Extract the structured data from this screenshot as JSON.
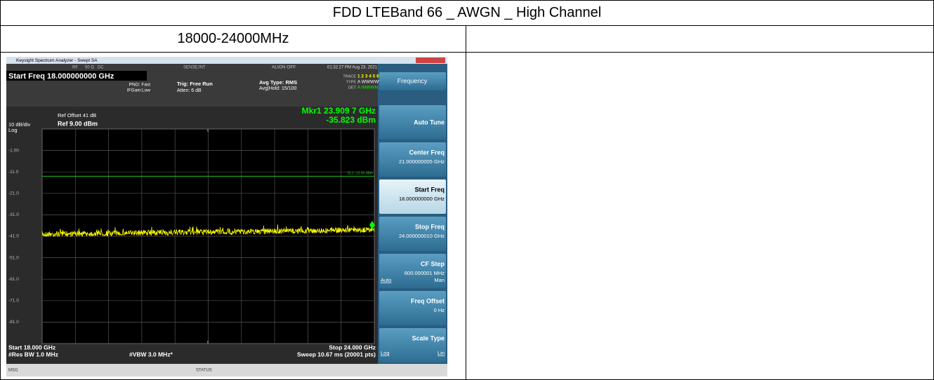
{
  "table": {
    "title": "FDD LTEBand 66 _ AWGN _ High Channel",
    "range": "18000-24000MHz"
  },
  "screenshot": {
    "window_title": "Keysight Spectrum Analyzer - Swept SA",
    "rf": "RF",
    "impedance": "50 Ω",
    "coupling": "DC",
    "sense": "SENSE:INT",
    "align": "ALIGN OFF",
    "datetime": "01:32:27 PM Aug 23, 2021",
    "start_freq": "Start Freq 18.000000000 GHz",
    "pno": "PNO: Fast",
    "ifgain": "IFGain:Low",
    "trig": "Trig: Free Run",
    "atten": "Atten: 6 dB",
    "avg_type": "Avg Type: RMS",
    "avg_hold": "Avg|Hold: 15/100",
    "trace_label": "TRACE",
    "trace_nums": "1 2 3 4 5 6",
    "type_label": "TYPE",
    "type_vals": "A WWWWW",
    "det_label": "DET",
    "det_vals": "A NNNNN",
    "ref_offset": "Ref Offset 41 dB",
    "scale": "10 dB/div",
    "ref_level": "Ref 9.00 dBm",
    "log": "Log",
    "marker_freq": "Mkr1 23.909 7 GHz",
    "marker_amp": "-35.823 dBm",
    "dl_label": "DL1 -13.00 dBm",
    "y_labels": [
      "-1.00",
      "-11.0",
      "-21.0",
      "-31.0",
      "-41.0",
      "-51.0",
      "-61.0",
      "-71.0",
      "-81.0"
    ],
    "start": "Start 18.000 GHz",
    "rbw": "#Res BW 1.0 MHz",
    "vbw": "#VBW 3.0 MHz*",
    "stop": "Stop 24.000 GHz",
    "sweep": "Sweep 10.67 ms (20001 pts)",
    "msg": "MSG",
    "status": "STATUS",
    "menu": {
      "title": "Frequency",
      "buttons": [
        {
          "label": "Auto Tune"
        },
        {
          "label": "Center Freq",
          "value": "21.000000005 GHz"
        },
        {
          "label": "Start Freq",
          "value": "18.000000000 GHz"
        },
        {
          "label": "Stop Freq",
          "value": "24.000000010 GHz"
        },
        {
          "label": "CF Step",
          "value": "600.000001 MHz",
          "left": "Auto",
          "right": "Man"
        },
        {
          "label": "Freq Offset",
          "value": "0 Hz"
        },
        {
          "label": "Scale Type",
          "left": "Log",
          "right": "Lin"
        }
      ]
    }
  }
}
